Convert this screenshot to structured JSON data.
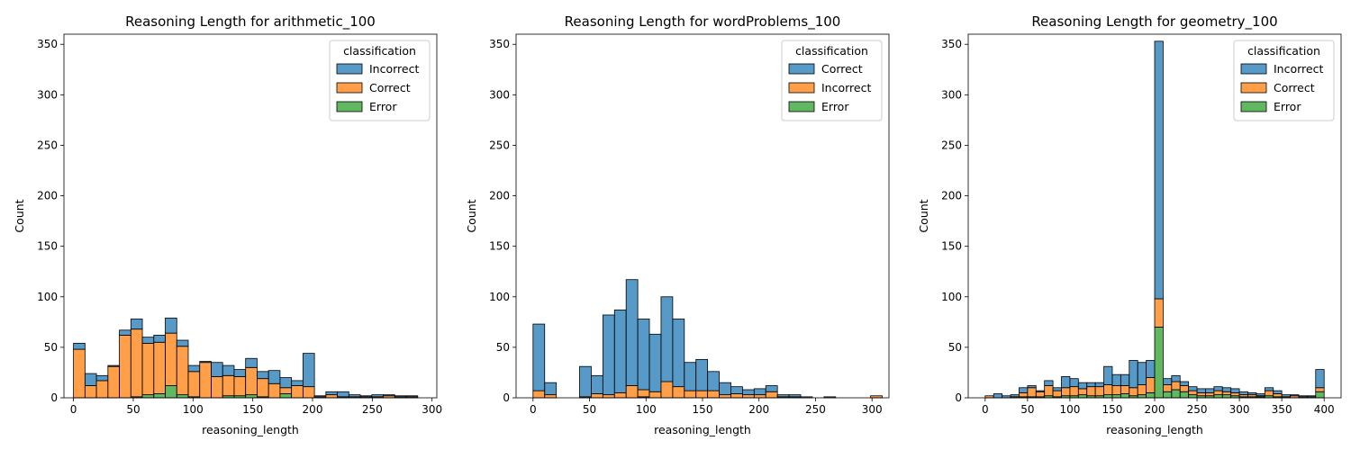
{
  "chart_data": [
    {
      "type": "histogram-stacked",
      "title": "Reasoning Length for arithmetic_100",
      "xlabel": "reasoning_length",
      "ylabel": "Count",
      "xlim": [
        -8,
        304
      ],
      "ylim": [
        0,
        360
      ],
      "xticks": [
        0,
        50,
        100,
        150,
        200,
        250,
        300
      ],
      "yticks": [
        0,
        50,
        100,
        150,
        200,
        250,
        300,
        350
      ],
      "bin_start": 0,
      "bin_width": 9.6,
      "legend": {
        "title": "classification",
        "entries": [
          "Incorrect",
          "Correct",
          "Error"
        ],
        "placement": "top-right"
      },
      "series": [
        {
          "name": "Incorrect",
          "color": "#1f77b4",
          "values": [
            6,
            12,
            5,
            1,
            5,
            10,
            6,
            7,
            15,
            6,
            6,
            1,
            14,
            10,
            7,
            9,
            7,
            13,
            10,
            5,
            33,
            1,
            3,
            5,
            2,
            1,
            2,
            1,
            1,
            1
          ]
        },
        {
          "name": "Correct",
          "color": "#ff7f0e",
          "values": [
            48,
            12,
            17,
            31,
            62,
            67,
            51,
            51,
            52,
            48,
            25,
            35,
            21,
            20,
            19,
            27,
            18,
            14,
            6,
            12,
            11,
            1,
            3,
            1,
            1,
            1,
            1,
            2,
            1,
            1
          ]
        },
        {
          "name": "Error",
          "color": "#2ca02c",
          "values": [
            0,
            0,
            0,
            0,
            0,
            1,
            3,
            4,
            12,
            3,
            1,
            0,
            0,
            2,
            2,
            3,
            1,
            0,
            4,
            0,
            0,
            0,
            0,
            0,
            0,
            0,
            0,
            0,
            0,
            0
          ]
        }
      ]
    },
    {
      "type": "histogram-stacked",
      "title": "Reasoning Length for wordProblems_100",
      "xlabel": "reasoning_length",
      "ylabel": "Count",
      "xlim": [
        -15,
        315
      ],
      "ylim": [
        0,
        360
      ],
      "xticks": [
        0,
        50,
        100,
        150,
        200,
        250,
        300
      ],
      "yticks": [
        0,
        50,
        100,
        150,
        200,
        250,
        300,
        350
      ],
      "bin_start": 0,
      "bin_width": 10.3,
      "legend": {
        "title": "classification",
        "entries": [
          "Correct",
          "Incorrect",
          "Error"
        ],
        "placement": "top-right"
      },
      "series": [
        {
          "name": "Correct",
          "color": "#1f77b4",
          "values": [
            66,
            12,
            0,
            0,
            30,
            18,
            79,
            82,
            105,
            70,
            57,
            84,
            67,
            28,
            31,
            19,
            12,
            7,
            5,
            6,
            6,
            2,
            2,
            1,
            0,
            1,
            0,
            0,
            0,
            0
          ]
        },
        {
          "name": "Incorrect",
          "color": "#ff7f0e",
          "values": [
            7,
            3,
            0,
            0,
            1,
            4,
            3,
            5,
            12,
            7,
            6,
            16,
            11,
            7,
            7,
            7,
            3,
            4,
            3,
            3,
            6,
            1,
            1,
            0,
            0,
            0,
            0,
            0,
            0,
            2
          ]
        },
        {
          "name": "Error",
          "color": "#2ca02c",
          "values": [
            0,
            0,
            0,
            0,
            0,
            0,
            0,
            0,
            0,
            1,
            0,
            0,
            0,
            0,
            0,
            0,
            0,
            0,
            0,
            0,
            0,
            0,
            0,
            0,
            0,
            0,
            0,
            0,
            0,
            0
          ]
        }
      ]
    },
    {
      "type": "histogram-stacked",
      "title": "Reasoning Length for geometry_100",
      "xlabel": "reasoning_length",
      "ylabel": "Count",
      "xlim": [
        -20,
        420
      ],
      "ylim": [
        0,
        360
      ],
      "xticks": [
        0,
        50,
        100,
        150,
        200,
        250,
        300,
        350,
        400
      ],
      "yticks": [
        0,
        50,
        100,
        150,
        200,
        250,
        300,
        350
      ],
      "bin_start": 0,
      "bin_width": 10,
      "legend": {
        "title": "classification",
        "entries": [
          "Incorrect",
          "Correct",
          "Error"
        ],
        "placement": "top-right"
      },
      "series": [
        {
          "name": "Incorrect",
          "color": "#1f77b4",
          "values": [
            0,
            4,
            2,
            2,
            5,
            2,
            1,
            5,
            3,
            11,
            8,
            6,
            4,
            4,
            18,
            11,
            11,
            27,
            22,
            17,
            255,
            6,
            6,
            4,
            4,
            4,
            4,
            4,
            4,
            4,
            3,
            2,
            2,
            3,
            3,
            2,
            1,
            1,
            1,
            18
          ]
        },
        {
          "name": "Correct",
          "color": "#ff7f0e",
          "values": [
            2,
            0,
            0,
            1,
            4,
            9,
            5,
            10,
            6,
            8,
            9,
            6,
            9,
            9,
            10,
            9,
            8,
            8,
            10,
            15,
            28,
            7,
            8,
            6,
            4,
            3,
            3,
            4,
            3,
            3,
            2,
            2,
            1,
            5,
            3,
            1,
            2,
            1,
            1,
            4
          ]
        },
        {
          "name": "Error",
          "color": "#2ca02c",
          "values": [
            0,
            0,
            0,
            0,
            1,
            1,
            1,
            2,
            1,
            2,
            2,
            3,
            2,
            2,
            3,
            3,
            4,
            2,
            3,
            5,
            70,
            6,
            8,
            6,
            3,
            2,
            2,
            3,
            3,
            2,
            1,
            1,
            1,
            2,
            1,
            0,
            0,
            0,
            0,
            6
          ]
        }
      ]
    }
  ]
}
